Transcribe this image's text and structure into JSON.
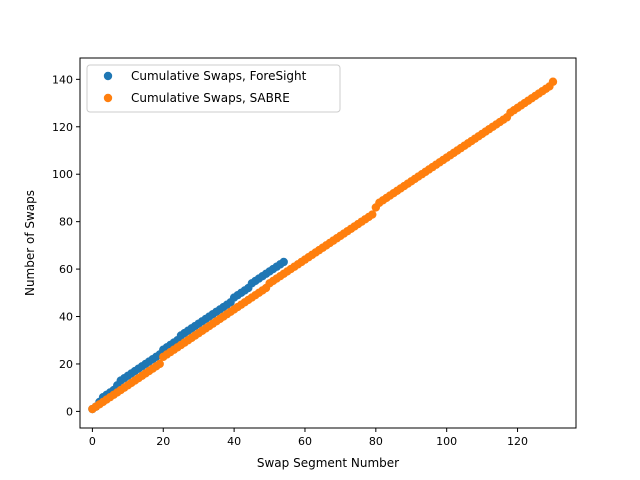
{
  "chart_data": {
    "type": "scatter",
    "title": "",
    "xlabel": "Swap Segment Number",
    "ylabel": "Number of Swaps",
    "xlim": [
      -3.5,
      136.5
    ],
    "ylim": [
      -7,
      149
    ],
    "xticks": [
      0,
      20,
      40,
      60,
      80,
      100,
      120
    ],
    "yticks": [
      0,
      20,
      40,
      60,
      80,
      100,
      120,
      140
    ],
    "grid": false,
    "legend_position": "upper-left",
    "series": [
      {
        "name": "Cumulative Swaps, ForeSight",
        "color": "#1f77b4",
        "x": [
          0,
          1,
          2,
          3,
          4,
          5,
          6,
          7,
          8,
          9,
          10,
          11,
          12,
          13,
          14,
          15,
          16,
          17,
          18,
          19,
          20,
          21,
          22,
          23,
          24,
          25,
          26,
          27,
          28,
          29,
          30,
          31,
          32,
          33,
          34,
          35,
          36,
          37,
          38,
          39,
          40,
          41,
          42,
          43,
          44,
          45,
          46,
          47,
          48,
          49,
          50,
          51,
          52,
          53,
          54
        ],
        "y": [
          1,
          2,
          4,
          6,
          7,
          8,
          9,
          11,
          13,
          14,
          15,
          16,
          17,
          18,
          19,
          20,
          21,
          22,
          23,
          24,
          26,
          27,
          28,
          29,
          30,
          32,
          33,
          34,
          35,
          36,
          37,
          38,
          39,
          40,
          41,
          42,
          43,
          44,
          45,
          46,
          48,
          49,
          50,
          51,
          52,
          54,
          55,
          56,
          57,
          58,
          59,
          60,
          61,
          62,
          63
        ]
      },
      {
        "name": "Cumulative Swaps, SABRE",
        "color": "#ff7f0e",
        "x": [
          0,
          1,
          2,
          3,
          4,
          5,
          6,
          7,
          8,
          9,
          10,
          11,
          12,
          13,
          14,
          15,
          16,
          17,
          18,
          19,
          20,
          21,
          22,
          23,
          24,
          25,
          26,
          27,
          28,
          29,
          30,
          31,
          32,
          33,
          34,
          35,
          36,
          37,
          38,
          39,
          40,
          41,
          42,
          43,
          44,
          45,
          46,
          47,
          48,
          49,
          50,
          51,
          52,
          53,
          54,
          55,
          56,
          57,
          58,
          59,
          60,
          61,
          62,
          63,
          64,
          65,
          66,
          67,
          68,
          69,
          70,
          71,
          72,
          73,
          74,
          75,
          76,
          77,
          78,
          79,
          80,
          81,
          82,
          83,
          84,
          85,
          86,
          87,
          88,
          89,
          90,
          91,
          92,
          93,
          94,
          95,
          96,
          97,
          98,
          99,
          100,
          101,
          102,
          103,
          104,
          105,
          106,
          107,
          108,
          109,
          110,
          111,
          112,
          113,
          114,
          115,
          116,
          117,
          118,
          119,
          120,
          121,
          122,
          123,
          124,
          125,
          126,
          127,
          128,
          129,
          130
        ],
        "y": [
          1,
          2,
          3,
          4,
          5,
          6,
          7,
          8,
          9,
          10,
          11,
          12,
          13,
          14,
          15,
          16,
          17,
          18,
          19,
          20,
          23,
          24,
          25,
          26,
          27,
          28,
          29,
          30,
          31,
          32,
          33,
          34,
          35,
          36,
          37,
          38,
          39,
          40,
          41,
          42,
          43,
          44,
          45,
          46,
          47,
          48,
          49,
          50,
          51,
          52,
          54,
          55,
          56,
          57,
          58,
          59,
          60,
          61,
          62,
          63,
          64,
          65,
          66,
          67,
          68,
          69,
          70,
          71,
          72,
          73,
          74,
          75,
          76,
          77,
          78,
          79,
          80,
          81,
          82,
          83,
          86,
          88,
          89,
          90,
          91,
          92,
          93,
          94,
          95,
          96,
          97,
          98,
          99,
          100,
          101,
          102,
          103,
          104,
          105,
          106,
          107,
          108,
          109,
          110,
          111,
          112,
          113,
          114,
          115,
          116,
          117,
          118,
          119,
          120,
          121,
          122,
          123,
          124,
          126,
          127,
          128,
          129,
          130,
          131,
          132,
          133,
          134,
          135,
          136,
          137,
          139
        ]
      }
    ]
  }
}
